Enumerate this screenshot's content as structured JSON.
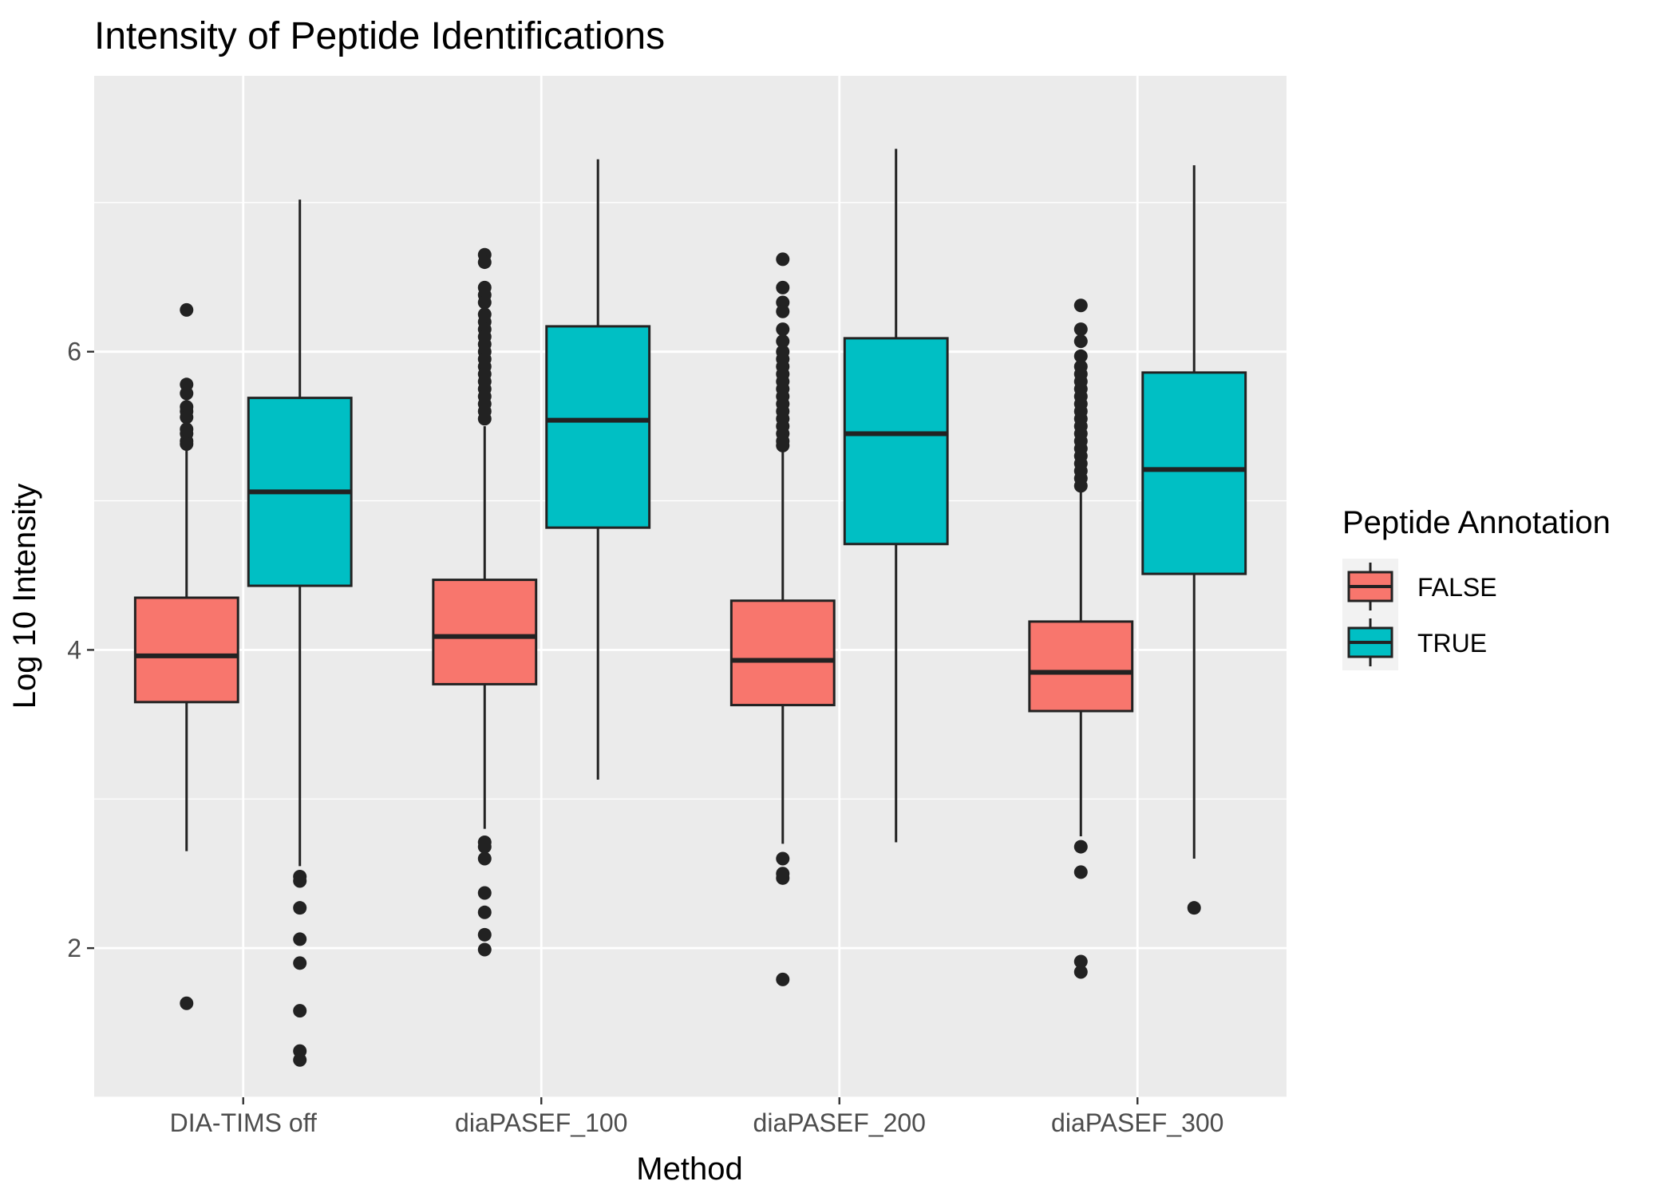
{
  "chart_data": {
    "type": "boxplot",
    "title": "Intensity of Peptide Identifications",
    "xlabel": "Method",
    "ylabel": "Log 10 Intensity",
    "categories": [
      "DIA-TIMS off",
      "diaPASEF_100",
      "diaPASEF_200",
      "diaPASEF_300"
    ],
    "ylim": [
      1.0,
      7.85
    ],
    "yticks": [
      2,
      4,
      6
    ],
    "grid": true,
    "legend": {
      "title": "Peptide Annotation",
      "position": "right"
    },
    "series": [
      {
        "name": "FALSE",
        "color": "#F8766D",
        "boxes": [
          {
            "lower_whisker": 2.65,
            "q1": 3.65,
            "median": 3.96,
            "q3": 4.35,
            "upper_whisker": 5.35,
            "outliers": [
              6.28,
              5.78,
              5.72,
              5.63,
              5.6,
              5.56,
              5.48,
              5.45,
              5.4,
              5.38,
              1.63
            ]
          },
          {
            "lower_whisker": 2.8,
            "q1": 3.77,
            "median": 4.09,
            "q3": 4.47,
            "upper_whisker": 5.5,
            "outliers": [
              6.65,
              6.6,
              6.43,
              6.38,
              6.33,
              6.25,
              6.2,
              6.15,
              6.1,
              6.05,
              6.0,
              5.95,
              5.9,
              5.85,
              5.8,
              5.75,
              5.7,
              5.65,
              5.6,
              5.55,
              2.71,
              2.68,
              2.6,
              2.37,
              2.24,
              2.09,
              1.99
            ]
          },
          {
            "lower_whisker": 2.7,
            "q1": 3.63,
            "median": 3.93,
            "q3": 4.33,
            "upper_whisker": 5.35,
            "outliers": [
              6.62,
              6.43,
              6.33,
              6.27,
              6.15,
              6.07,
              6.0,
              5.95,
              5.9,
              5.85,
              5.8,
              5.75,
              5.7,
              5.65,
              5.6,
              5.55,
              5.5,
              5.45,
              5.4,
              5.37,
              2.6,
              2.5,
              2.47,
              1.79
            ]
          },
          {
            "lower_whisker": 2.75,
            "q1": 3.59,
            "median": 3.85,
            "q3": 4.19,
            "upper_whisker": 5.07,
            "outliers": [
              6.31,
              6.15,
              6.07,
              5.97,
              5.9,
              5.85,
              5.8,
              5.75,
              5.7,
              5.65,
              5.6,
              5.55,
              5.5,
              5.45,
              5.4,
              5.35,
              5.3,
              5.25,
              5.2,
              5.15,
              5.1,
              2.68,
              2.51,
              1.91,
              1.84
            ]
          }
        ]
      },
      {
        "name": "TRUE",
        "color": "#00BFC4",
        "boxes": [
          {
            "lower_whisker": 2.55,
            "q1": 4.43,
            "median": 5.06,
            "q3": 5.69,
            "upper_whisker": 7.02,
            "outliers": [
              2.48,
              2.45,
              2.27,
              2.06,
              1.9,
              1.58,
              1.31,
              1.25
            ]
          },
          {
            "lower_whisker": 3.13,
            "q1": 4.82,
            "median": 5.54,
            "q3": 6.17,
            "upper_whisker": 7.29,
            "outliers": []
          },
          {
            "lower_whisker": 2.71,
            "q1": 4.71,
            "median": 5.45,
            "q3": 6.09,
            "upper_whisker": 7.36,
            "outliers": []
          },
          {
            "lower_whisker": 2.6,
            "q1": 4.51,
            "median": 5.21,
            "q3": 5.86,
            "upper_whisker": 7.25,
            "outliers": [
              2.27
            ]
          }
        ]
      }
    ]
  }
}
